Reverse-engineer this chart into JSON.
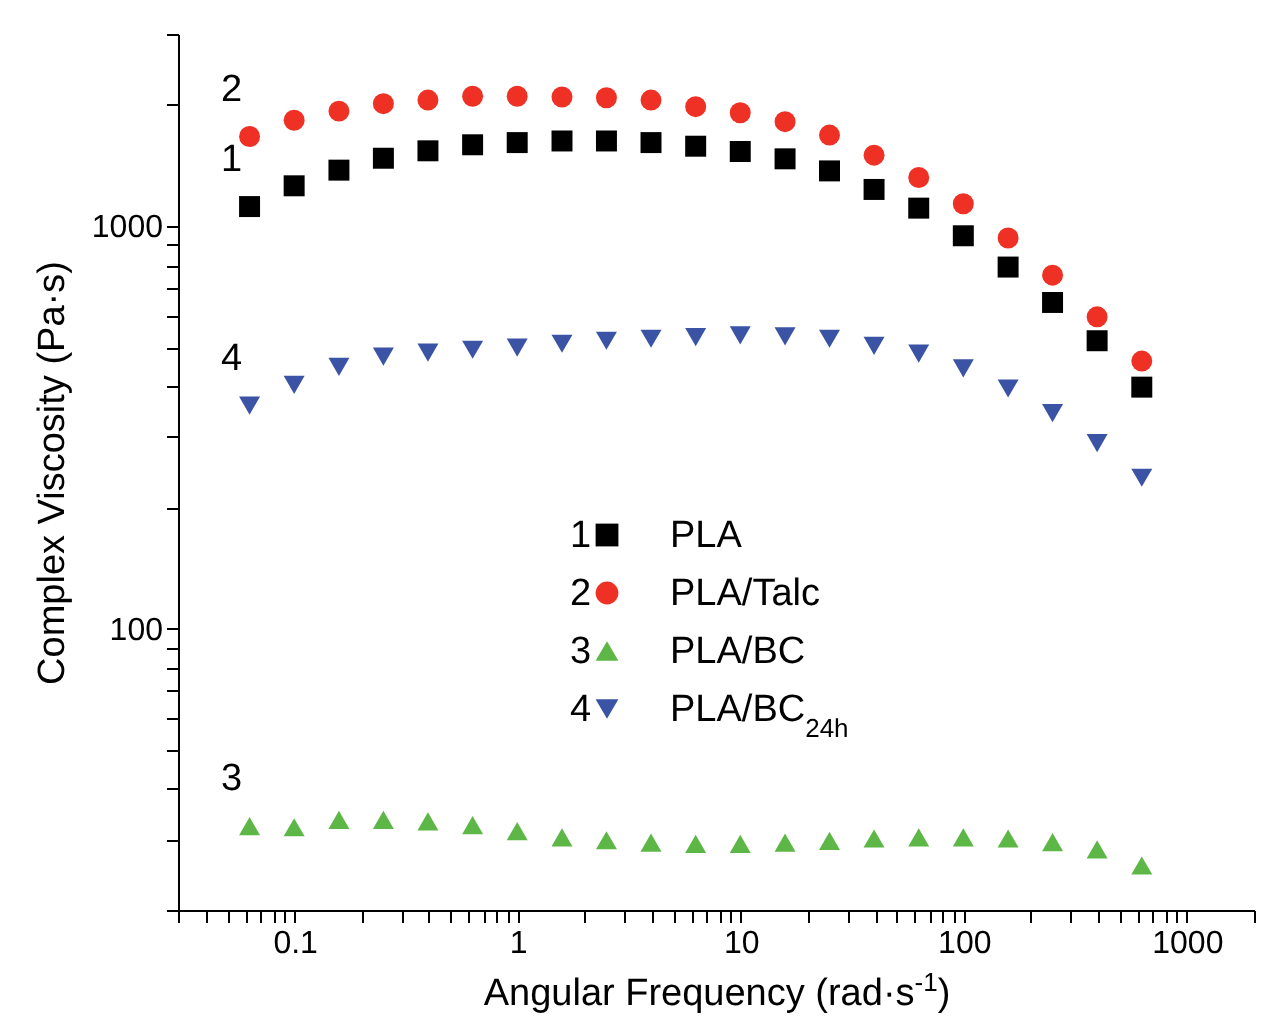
{
  "chart_data": {
    "type": "scatter",
    "xlabel": "Angular Frequency (rad·s$^{-1}$)",
    "ylabel": "Complex Viscosity (Pa·s)",
    "log": "xy",
    "legend": "center",
    "xlim": [
      0.03,
      2000
    ],
    "ylim": [
      20,
      3000
    ],
    "xticks": [
      {
        "value": 0.03,
        "label": null
      },
      {
        "value": 0.04,
        "label": null
      },
      {
        "value": 0.05,
        "label": null
      },
      {
        "value": 0.06,
        "label": null
      },
      {
        "value": 0.07,
        "label": null
      },
      {
        "value": 0.08,
        "label": null
      },
      {
        "value": 0.09,
        "label": null
      },
      0.1,
      {
        "value": 0.2,
        "label": null
      },
      {
        "value": 0.3,
        "label": null
      },
      {
        "value": 0.4,
        "label": null
      },
      {
        "value": 0.5,
        "label": null
      },
      {
        "value": 0.6,
        "label": null
      },
      {
        "value": 0.7,
        "label": null
      },
      {
        "value": 0.8,
        "label": null
      },
      {
        "value": 0.9,
        "label": null
      },
      1,
      {
        "value": 2,
        "label": null
      },
      {
        "value": 3,
        "label": null
      },
      {
        "value": 4,
        "label": null
      },
      {
        "value": 5,
        "label": null
      },
      {
        "value": 6,
        "label": null
      },
      {
        "value": 7,
        "label": null
      },
      {
        "value": 8,
        "label": null
      },
      {
        "value": 9,
        "label": null
      },
      10,
      {
        "value": 20,
        "label": null
      },
      {
        "value": 30,
        "label": null
      },
      {
        "value": 40,
        "label": null
      },
      {
        "value": 50,
        "label": null
      },
      {
        "value": 60,
        "label": null
      },
      {
        "value": 70,
        "label": null
      },
      {
        "value": 80,
        "label": null
      },
      {
        "value": 90,
        "label": null
      },
      100,
      {
        "value": 200,
        "label": null
      },
      {
        "value": 300,
        "label": null
      },
      {
        "value": 400,
        "label": null
      },
      {
        "value": 500,
        "label": null
      },
      {
        "value": 600,
        "label": null
      },
      {
        "value": 700,
        "label": null
      },
      {
        "value": 800,
        "label": null
      },
      {
        "value": 900,
        "label": null
      },
      1000,
      {
        "value": 2000,
        "label": null
      }
    ],
    "yticks": [
      {
        "value": 20,
        "label": null
      },
      {
        "value": 30,
        "label": null
      },
      {
        "value": 40,
        "label": null
      },
      {
        "value": 50,
        "label": null
      },
      {
        "value": 60,
        "label": null
      },
      {
        "value": 70,
        "label": null
      },
      {
        "value": 80,
        "label": null
      },
      {
        "value": 90,
        "label": null
      },
      100,
      {
        "value": 200,
        "label": null
      },
      {
        "value": 300,
        "label": null
      },
      {
        "value": 400,
        "label": null
      },
      {
        "value": 500,
        "label": null
      },
      {
        "value": 600,
        "label": null
      },
      {
        "value": 700,
        "label": null
      },
      {
        "value": 800,
        "label": null
      },
      {
        "value": 900,
        "label": null
      },
      1000,
      {
        "value": 2000,
        "label": null
      },
      {
        "value": 3000,
        "label": null
      }
    ],
    "x": [
      0.0628,
      0.0995,
      0.158,
      0.25,
      0.396,
      0.628,
      0.995,
      1.58,
      2.5,
      3.96,
      6.28,
      9.95,
      15.8,
      25,
      39.6,
      62.8,
      99.5,
      158,
      250,
      396,
      628
    ],
    "series": [
      {
        "name": "PLA",
        "color": "#000000",
        "marker": "square",
        "values": [
          1118,
          1259,
          1377,
          1474,
          1538,
          1592,
          1612,
          1627,
          1627,
          1612,
          1579,
          1532,
          1469,
          1371,
          1233,
          1108,
          946,
          791,
          646,
          519,
          398
        ]
      },
      {
        "name": "PLA/Talc",
        "color": "#ee3124",
        "marker": "circle",
        "values": [
          1669,
          1832,
          1930,
          2014,
          2056,
          2101,
          2101,
          2092,
          2083,
          2056,
          1980,
          1912,
          1817,
          1683,
          1500,
          1320,
          1136,
          934,
          755,
          595,
          462
        ]
      },
      {
        "name": "PLA/BC",
        "color": "#5cb747",
        "marker": "triangle",
        "values": [
          32.3,
          32.1,
          33.5,
          33.5,
          33.2,
          32.5,
          31.4,
          30.3,
          29.8,
          29.4,
          29.2,
          29.2,
          29.4,
          29.7,
          30.1,
          30.3,
          30.3,
          30.1,
          29.5,
          28.3,
          25.8
        ]
      },
      {
        "name": "PLA/BC$_{24h}$",
        "color": "#3a53a4",
        "marker": "triangle-down",
        "values": [
          358,
          403,
          447,
          474,
          485,
          493,
          499,
          510,
          519,
          525,
          530,
          535,
          532,
          525,
          504,
          482,
          443,
          395,
          343,
          289,
          237
        ]
      }
    ],
    "annotations": [
      "1",
      "2",
      "3",
      "4",
      "1",
      "2",
      "3",
      "4"
    ]
  }
}
